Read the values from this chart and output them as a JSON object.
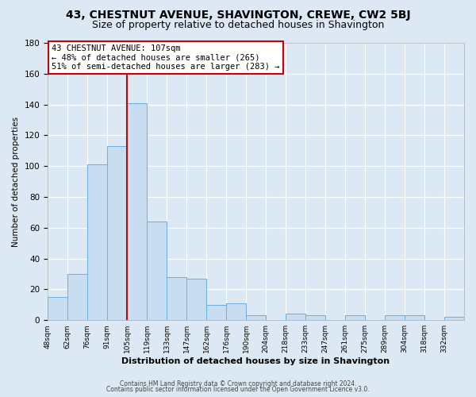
{
  "title1": "43, CHESTNUT AVENUE, SHAVINGTON, CREWE, CW2 5BJ",
  "title2": "Size of property relative to detached houses in Shavington",
  "xlabel": "Distribution of detached houses by size in Shavington",
  "ylabel": "Number of detached properties",
  "bin_labels": [
    "48sqm",
    "62sqm",
    "76sqm",
    "91sqm",
    "105sqm",
    "119sqm",
    "133sqm",
    "147sqm",
    "162sqm",
    "176sqm",
    "190sqm",
    "204sqm",
    "218sqm",
    "233sqm",
    "247sqm",
    "261sqm",
    "275sqm",
    "289sqm",
    "304sqm",
    "318sqm",
    "332sqm"
  ],
  "bar_heights": [
    15,
    30,
    101,
    113,
    141,
    64,
    28,
    27,
    10,
    11,
    3,
    0,
    4,
    3,
    0,
    3,
    0,
    3,
    3,
    0,
    2
  ],
  "bar_color": "#c9ddf0",
  "bar_edge_color": "#6aaee0",
  "vline_x": 4,
  "vline_color": "#cc0000",
  "annotation_title": "43 CHESTNUT AVENUE: 107sqm",
  "annotation_line1": "← 48% of detached houses are smaller (265)",
  "annotation_line2": "51% of semi-detached houses are larger (283) →",
  "annotation_box_color": "white",
  "annotation_box_edge": "#cc0000",
  "ylim": [
    0,
    180
  ],
  "yticks": [
    0,
    20,
    40,
    60,
    80,
    100,
    120,
    140,
    160,
    180
  ],
  "footer1": "Contains HM Land Registry data © Crown copyright and database right 2024.",
  "footer2": "Contains public sector information licensed under the Open Government Licence v3.0.",
  "bg_color": "#dce9f5",
  "plot_bg_color": "#dce9f5",
  "grid_color": "#ffffff",
  "title1_fontsize": 10,
  "title2_fontsize": 9
}
